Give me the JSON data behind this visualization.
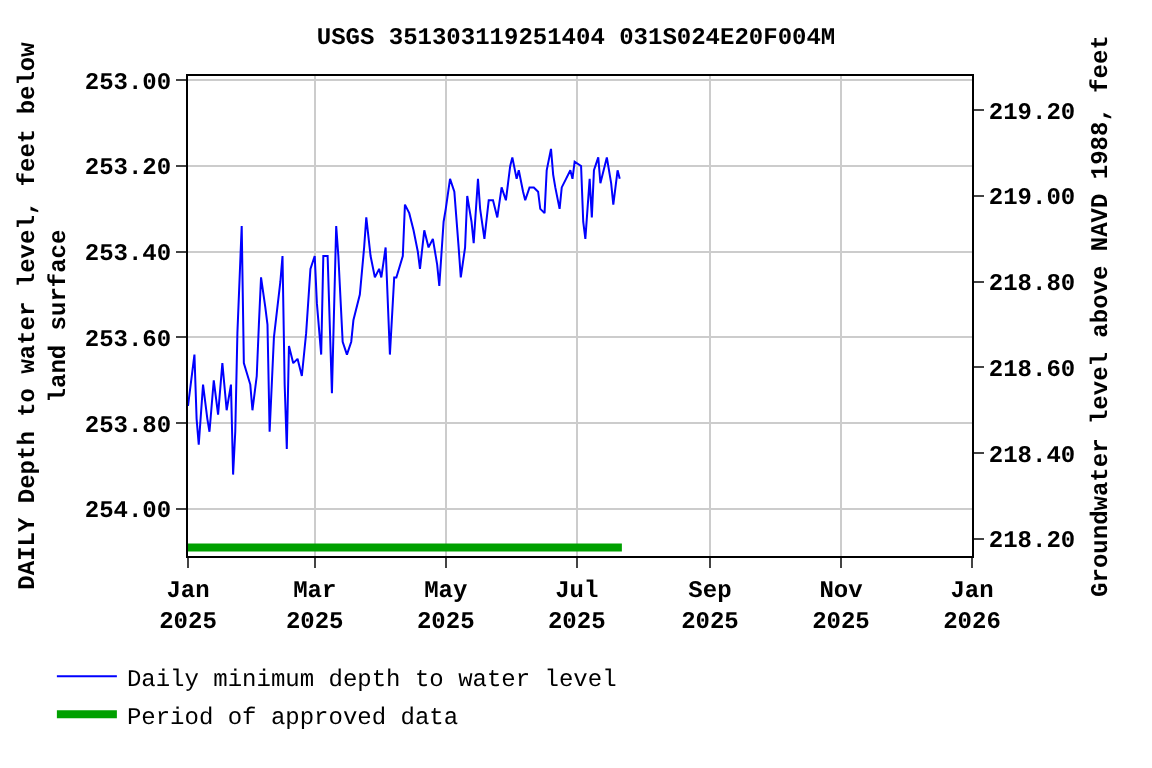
{
  "chart_data": {
    "type": "line",
    "title": "USGS 351303119251404 031S024E20F004M",
    "ylabel": "DAILY Depth to water level, feet below\nland surface",
    "y2label": "Groundwater level above NAVD 1988, feet",
    "xlim": [
      "2025-01-01",
      "2026-01-01"
    ],
    "xticks": [
      {
        "value": "2025-01-01",
        "label": "Jan\n2025"
      },
      {
        "value": "2025-03-01",
        "label": "Mar\n2025"
      },
      {
        "value": "2025-05-01",
        "label": "May\n2025"
      },
      {
        "value": "2025-07-01",
        "label": "Jul\n2025"
      },
      {
        "value": "2025-09-01",
        "label": "Sep\n2025"
      },
      {
        "value": "2025-11-01",
        "label": "Nov\n2025"
      },
      {
        "value": "2026-01-01",
        "label": "Jan\n2026"
      }
    ],
    "ylim": [
      254.11,
      252.99
    ],
    "yticks": [
      {
        "value": 253,
        "label": "253.00"
      },
      {
        "value": 253.2,
        "label": "253.20"
      },
      {
        "value": 253.4,
        "label": "253.40"
      },
      {
        "value": 253.6,
        "label": "253.60"
      },
      {
        "value": 253.8,
        "label": "253.80"
      },
      {
        "value": 254,
        "label": "254.00"
      }
    ],
    "y2lim": [
      218.16,
      219.28
    ],
    "y2ticks": [
      {
        "value": 218.2,
        "label": "218.20"
      },
      {
        "value": 218.4,
        "label": "218.40"
      },
      {
        "value": 218.6,
        "label": "218.60"
      },
      {
        "value": 218.8,
        "label": "218.80"
      },
      {
        "value": 219.0,
        "label": "219.00"
      },
      {
        "value": 219.2,
        "label": "219.20"
      }
    ],
    "grid": true,
    "legend": "bottom",
    "series": [
      {
        "name": "Daily minimum depth to water level",
        "color": "#0000ff",
        "x": [
          "2025-01-01",
          "2025-01-04",
          "2025-01-05",
          "2025-01-06",
          "2025-01-08",
          "2025-01-10",
          "2025-01-11",
          "2025-01-13",
          "2025-01-15",
          "2025-01-17",
          "2025-01-19",
          "2025-01-21",
          "2025-01-22",
          "2025-01-23",
          "2025-01-24",
          "2025-01-26",
          "2025-01-27",
          "2025-01-30",
          "2025-01-31",
          "2025-02-02",
          "2025-02-03",
          "2025-02-04",
          "2025-02-06",
          "2025-02-07",
          "2025-02-08",
          "2025-02-10",
          "2025-02-13",
          "2025-02-14",
          "2025-02-15",
          "2025-02-16",
          "2025-02-17",
          "2025-02-19",
          "2025-02-21",
          "2025-02-23",
          "2025-02-25",
          "2025-02-27",
          "2025-03-01",
          "2025-03-02",
          "2025-03-04",
          "2025-03-05",
          "2025-03-07",
          "2025-03-09",
          "2025-03-11",
          "2025-03-12",
          "2025-03-14",
          "2025-03-16",
          "2025-03-18",
          "2025-03-19",
          "2025-03-22",
          "2025-03-24",
          "2025-03-25",
          "2025-03-27",
          "2025-03-29",
          "2025-03-31",
          "2025-04-01",
          "2025-04-03",
          "2025-04-05",
          "2025-04-07",
          "2025-04-08",
          "2025-04-11",
          "2025-04-12",
          "2025-04-14",
          "2025-04-16",
          "2025-04-18",
          "2025-04-19",
          "2025-04-21",
          "2025-04-23",
          "2025-04-25",
          "2025-04-27",
          "2025-04-28",
          "2025-04-30",
          "2025-05-01",
          "2025-05-03",
          "2025-05-05",
          "2025-05-07",
          "2025-05-08",
          "2025-05-10",
          "2025-05-11",
          "2025-05-13",
          "2025-05-14",
          "2025-05-16",
          "2025-05-17",
          "2025-05-19",
          "2025-05-21",
          "2025-05-23",
          "2025-05-25",
          "2025-05-27",
          "2025-05-29",
          "2025-05-31",
          "2025-06-01",
          "2025-06-03",
          "2025-06-04",
          "2025-06-06",
          "2025-06-07",
          "2025-06-09",
          "2025-06-11",
          "2025-06-13",
          "2025-06-14",
          "2025-06-16",
          "2025-06-17",
          "2025-06-19",
          "2025-06-20",
          "2025-06-21",
          "2025-06-23",
          "2025-06-24",
          "2025-06-26",
          "2025-06-28",
          "2025-06-29",
          "2025-06-30",
          "2025-07-03",
          "2025-07-04",
          "2025-07-05",
          "2025-07-07",
          "2025-07-08",
          "2025-07-09",
          "2025-07-11",
          "2025-07-12",
          "2025-07-14",
          "2025-07-15",
          "2025-07-17",
          "2025-07-18",
          "2025-07-20",
          "2025-07-21"
        ],
        "values": [
          253.76,
          253.64,
          253.79,
          253.85,
          253.71,
          253.79,
          253.82,
          253.7,
          253.78,
          253.66,
          253.77,
          253.71,
          253.92,
          253.82,
          253.59,
          253.34,
          253.66,
          253.71,
          253.77,
          253.69,
          253.57,
          253.46,
          253.53,
          253.57,
          253.82,
          253.6,
          253.47,
          253.41,
          253.71,
          253.86,
          253.62,
          253.66,
          253.65,
          253.69,
          253.59,
          253.44,
          253.41,
          253.52,
          253.64,
          253.41,
          253.41,
          253.73,
          253.34,
          253.41,
          253.61,
          253.64,
          253.61,
          253.56,
          253.5,
          253.39,
          253.32,
          253.41,
          253.46,
          253.44,
          253.46,
          253.39,
          253.64,
          253.46,
          253.46,
          253.41,
          253.29,
          253.31,
          253.35,
          253.4,
          253.44,
          253.35,
          253.39,
          253.37,
          253.43,
          253.48,
          253.33,
          253.3,
          253.23,
          253.26,
          253.39,
          253.46,
          253.39,
          253.27,
          253.33,
          253.38,
          253.23,
          253.3,
          253.37,
          253.28,
          253.28,
          253.32,
          253.25,
          253.28,
          253.2,
          253.18,
          253.23,
          253.21,
          253.26,
          253.28,
          253.25,
          253.25,
          253.26,
          253.3,
          253.31,
          253.21,
          253.16,
          253.22,
          253.25,
          253.3,
          253.25,
          253.23,
          253.21,
          253.23,
          253.19,
          253.2,
          253.33,
          253.37,
          253.23,
          253.32,
          253.21,
          253.18,
          253.24,
          253.2,
          253.18,
          253.24,
          253.29,
          253.21,
          253.23
        ]
      },
      {
        "name": "Period of approved data",
        "color": "#00a000",
        "x": [
          "2025-01-01",
          "2025-07-22"
        ],
        "values": [
          254.09,
          254.09
        ]
      }
    ]
  }
}
